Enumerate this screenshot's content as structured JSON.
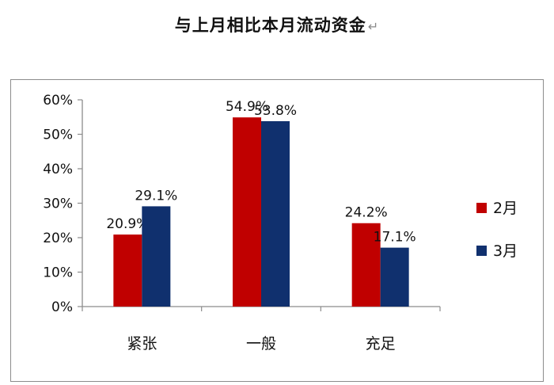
{
  "title": "与上月相比本月流动资金",
  "title_mark": "↵",
  "chart_data": {
    "type": "bar",
    "title": "与上月相比本月流动资金",
    "categories": [
      "紧张",
      "一般",
      "充足"
    ],
    "series": [
      {
        "name": "2月",
        "color": "#c00000",
        "values": [
          20.9,
          54.9,
          24.2
        ],
        "labels": [
          "20.9%",
          "54.9%",
          "24.2%"
        ]
      },
      {
        "name": "3月",
        "color": "#10306e",
        "values": [
          29.1,
          53.8,
          17.1
        ],
        "labels": [
          "29.1%",
          "53.8%",
          "17.1%"
        ]
      }
    ],
    "ylim": [
      0,
      60
    ],
    "yticks": [
      "0%",
      "10%",
      "20%",
      "30%",
      "40%",
      "50%",
      "60%"
    ],
    "grid": false,
    "legend": "right"
  }
}
